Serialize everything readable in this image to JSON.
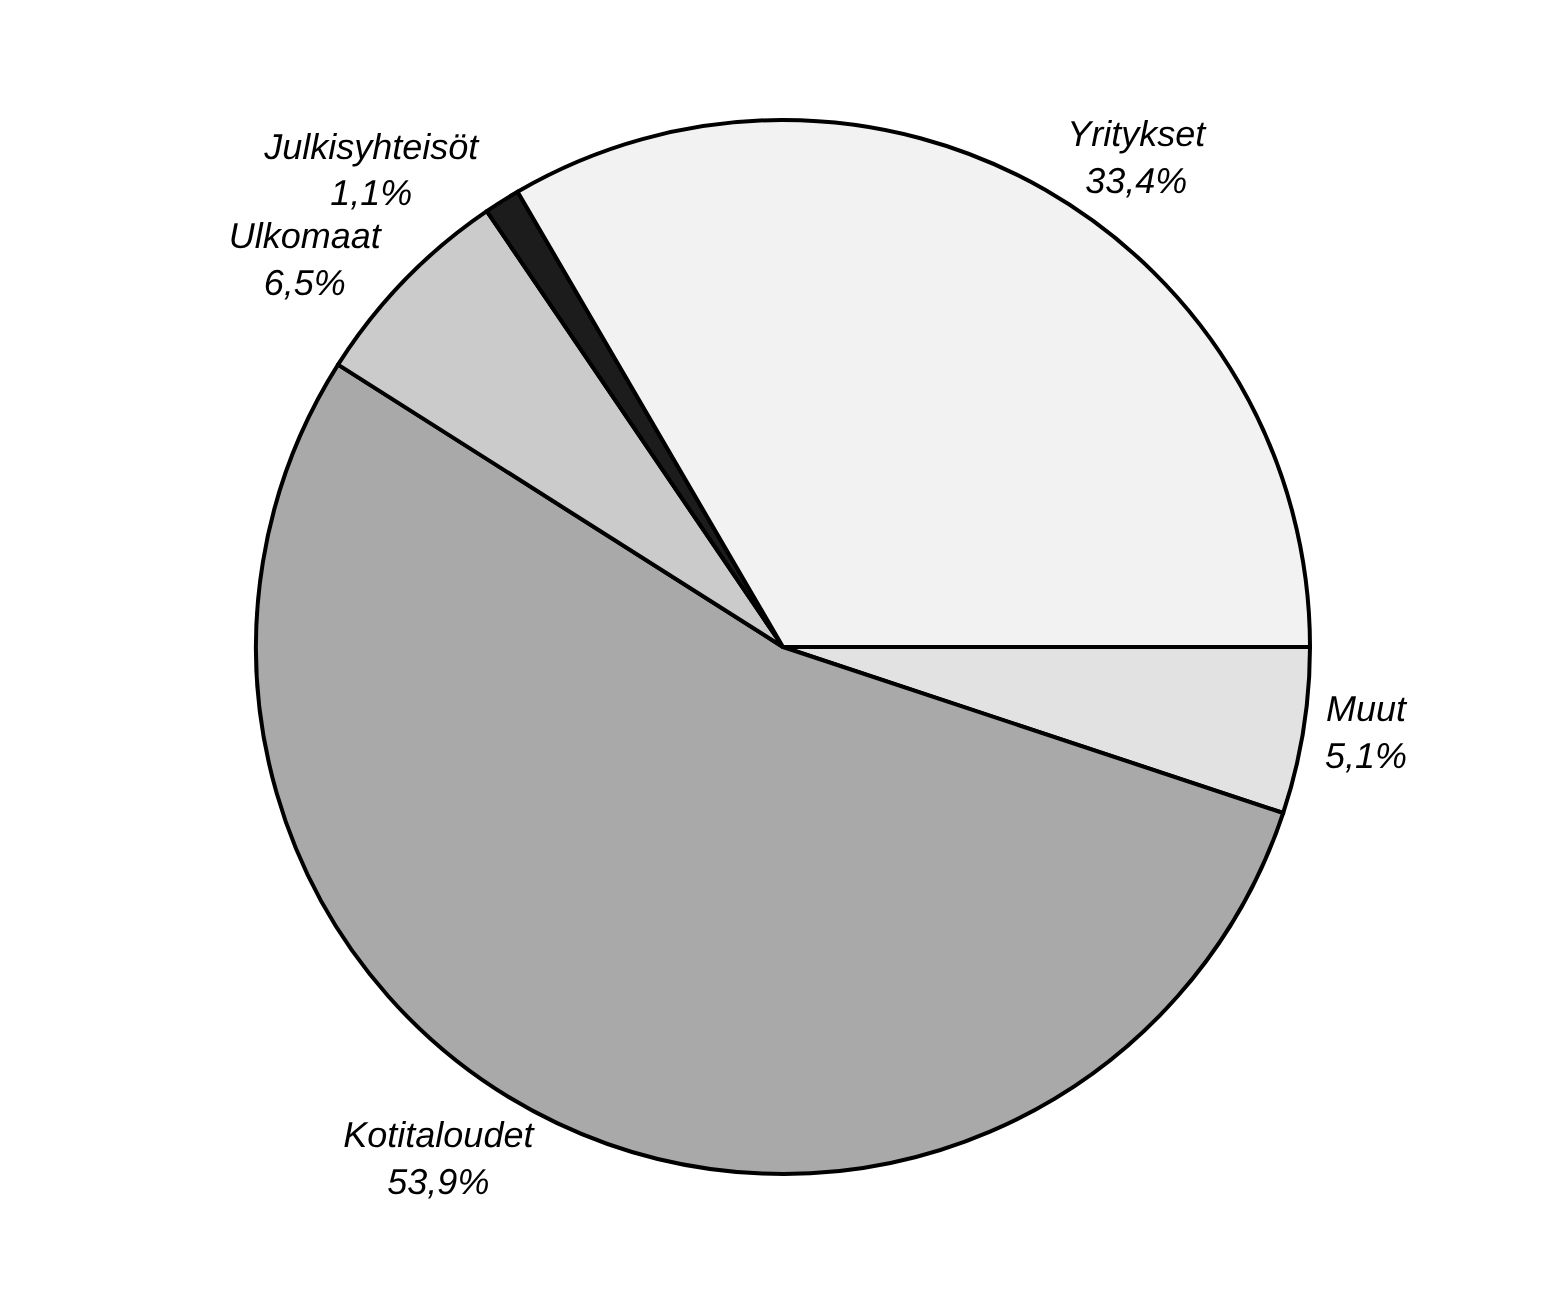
{
  "chart_data": {
    "type": "pie",
    "categories": [
      "Muut",
      "Kotitaloudet",
      "Ulkomaat",
      "Julkisyhteisöt",
      "Yritykset"
    ],
    "values": [
      5.1,
      53.9,
      6.5,
      1.1,
      33.4
    ],
    "colors": [
      "#e2e2e2",
      "#a9a9a9",
      "#cbcbcb",
      "#1c1c1c",
      "#f2f2f2"
    ],
    "value_labels": [
      "5,1%",
      "53,9%",
      "6,5%",
      "1,1%",
      "33,4%"
    ],
    "legend": false
  }
}
